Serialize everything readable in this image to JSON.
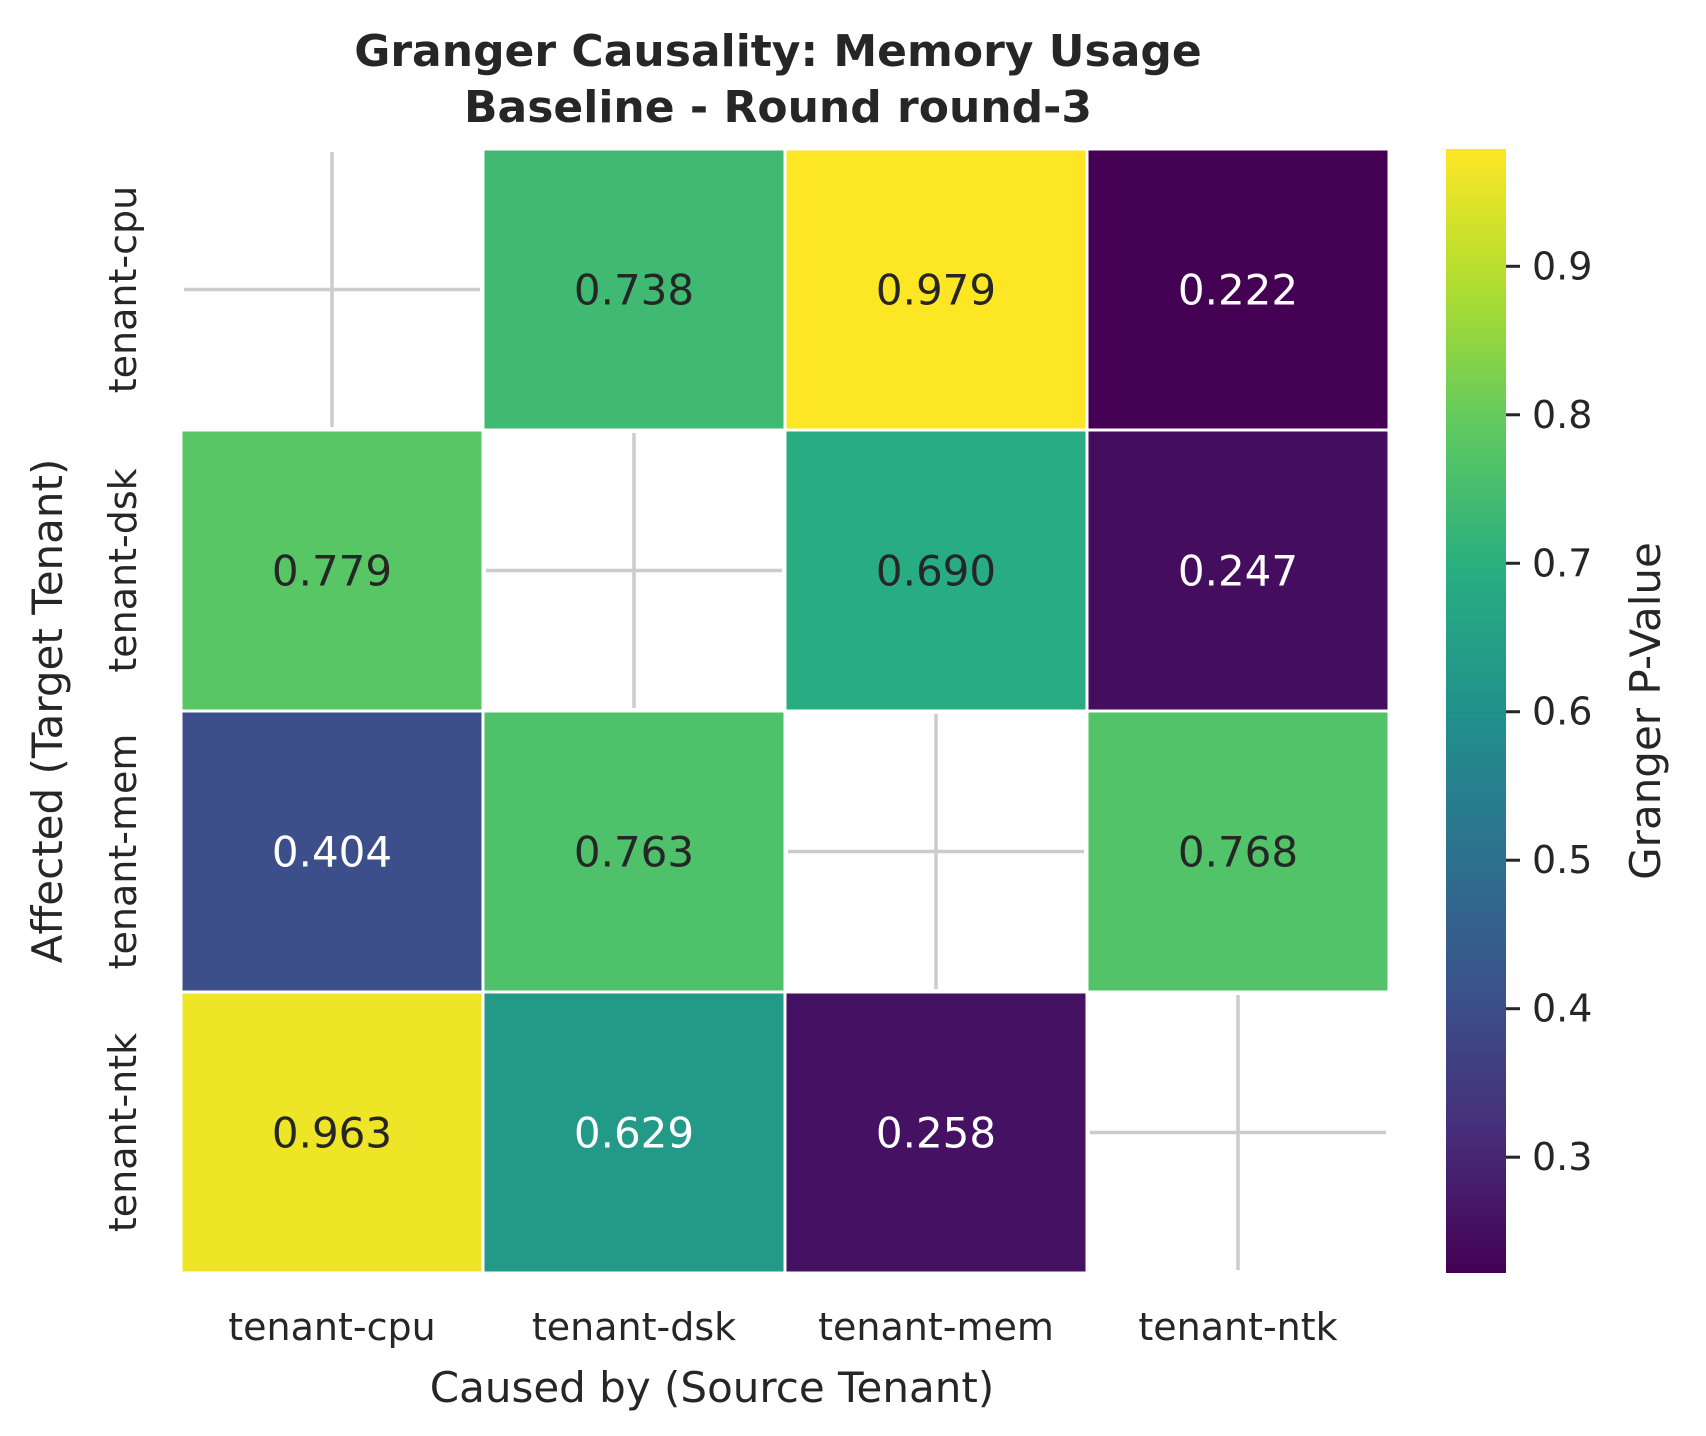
{
  "chart_data": {
    "type": "heatmap",
    "title": "Granger Causality: Memory Usage\nBaseline - Round round-3",
    "title_lines": [
      "Granger Causality: Memory Usage",
      "Baseline - Round round-3"
    ],
    "xlabel": "Caused by (Source Tenant)",
    "ylabel": "Affected (Target Tenant)",
    "x_categories": [
      "tenant-cpu",
      "tenant-dsk",
      "tenant-mem",
      "tenant-ntk"
    ],
    "y_categories": [
      "tenant-cpu",
      "tenant-dsk",
      "tenant-mem",
      "tenant-ntk"
    ],
    "values": [
      [
        null,
        0.738,
        0.979,
        0.222
      ],
      [
        0.779,
        null,
        0.69,
        0.247
      ],
      [
        0.404,
        0.763,
        null,
        0.768
      ],
      [
        0.963,
        0.629,
        0.258,
        null
      ]
    ],
    "value_format": "3 decimals",
    "colormap": "viridis",
    "colorbar": {
      "label": "Granger P-Value",
      "range": [
        0.222,
        0.979
      ],
      "ticks": [
        0.3,
        0.4,
        0.5,
        0.6,
        0.7,
        0.8,
        0.9
      ],
      "tick_labels": [
        "0.3",
        "0.4",
        "0.5",
        "0.6",
        "0.7",
        "0.8",
        "0.9"
      ]
    },
    "missing_cells_marker": "cross",
    "grid": false
  }
}
